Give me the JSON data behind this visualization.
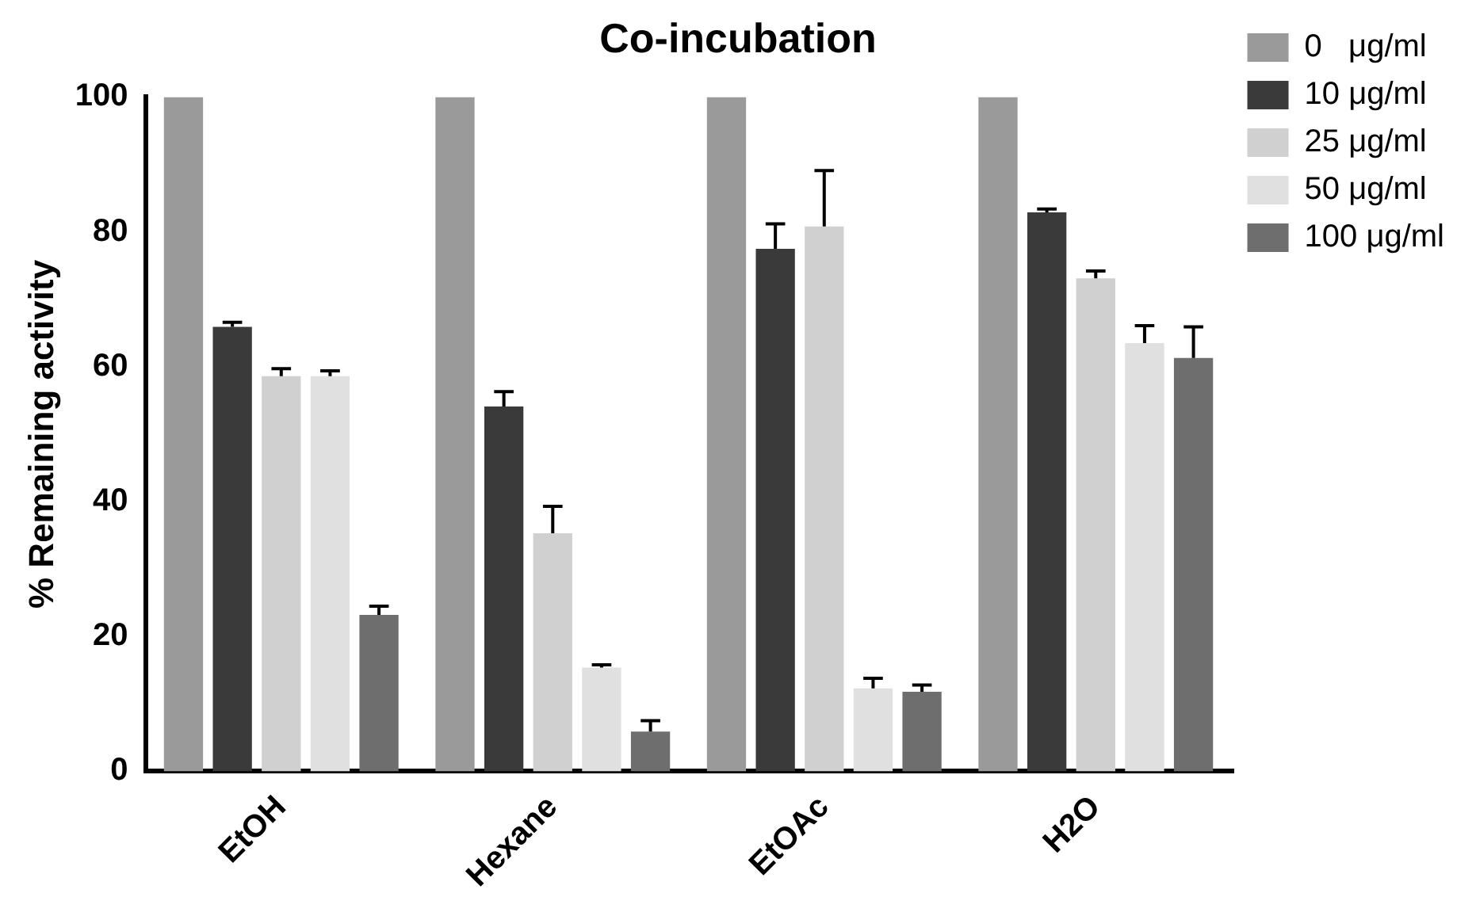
{
  "chart_data": {
    "type": "bar",
    "title": "Co-incubation",
    "ylabel": "% Remaining activity",
    "categories": [
      "EtOH",
      "Hexane",
      "EtOAc",
      "H2O"
    ],
    "series": [
      {
        "name": "0   μg/ml",
        "color": "#9a9a9a",
        "values": [
          100,
          100,
          100,
          100
        ]
      },
      {
        "name": "10 μg/ml",
        "color": "#3a3a3a",
        "values": [
          65.9,
          54.1,
          77.5,
          82.9
        ],
        "errors": [
          0.7,
          2.2,
          3.7,
          0.5
        ]
      },
      {
        "name": "25 μg/ml",
        "color": "#d0d0d0",
        "values": [
          58.6,
          35.3,
          80.8,
          73.1
        ],
        "errors": [
          1.1,
          4,
          8.3,
          1.1
        ]
      },
      {
        "name": "50 μg/ml",
        "color": "#e0e0e0",
        "values": [
          58.6,
          15.4,
          12.3,
          63.5
        ],
        "errors": [
          0.8,
          0.4,
          1.5,
          2.6
        ]
      },
      {
        "name": "100 μg/ml",
        "color": "#6e6e6e",
        "values": [
          23.2,
          5.9,
          11.8,
          61.3
        ],
        "errors": [
          1.3,
          1.6,
          1,
          4.6
        ]
      }
    ],
    "ylim": [
      0,
      100
    ],
    "yticks": [
      0,
      20,
      40,
      60,
      80,
      100
    ],
    "grid": false,
    "legend": "right"
  }
}
